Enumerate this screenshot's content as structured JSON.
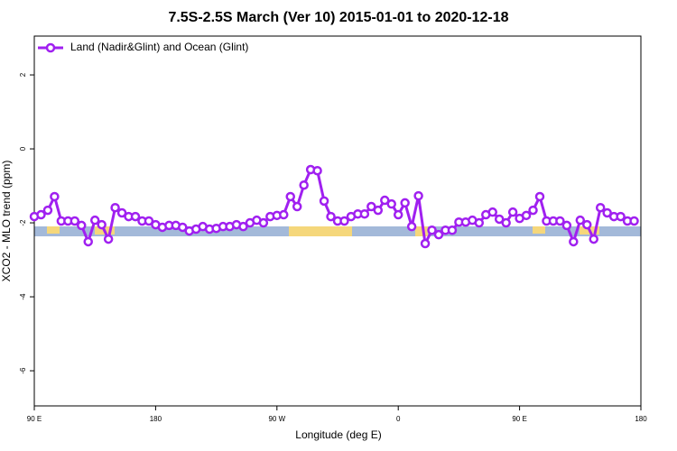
{
  "chart_data": {
    "type": "line",
    "title": "7.5S-2.5S March (Ver 10)   2015-01-01 to 2020-12-18",
    "x_label": "Longitude (deg E)",
    "y_label": "XCO2 - MLO trend (ppm)",
    "x": [
      90,
      95,
      100,
      105,
      110,
      115,
      120,
      125,
      130,
      135,
      140,
      145,
      150,
      155,
      160,
      165,
      170,
      175,
      180,
      185,
      190,
      195,
      200,
      205,
      210,
      215,
      220,
      225,
      230,
      235,
      240,
      245,
      250,
      255,
      260,
      265,
      270,
      275,
      280,
      285,
      290,
      295,
      300,
      305,
      310,
      315,
      320,
      325,
      330,
      335,
      340,
      345,
      350,
      355,
      360,
      365,
      370,
      375,
      380,
      385,
      390,
      395,
      400,
      405,
      410,
      415,
      420,
      425,
      430,
      435,
      440,
      445,
      450,
      455,
      460,
      465,
      470,
      475,
      480,
      485,
      490,
      495,
      500,
      505,
      510,
      515,
      520,
      525,
      530,
      535
    ],
    "series": [
      {
        "name": "Land (Nadir&Glint) and Ocean (Glint)",
        "color": "#a020f0",
        "values": [
          -1.83,
          -1.78,
          -1.66,
          -1.29,
          -1.95,
          -1.95,
          -1.95,
          -2.07,
          -2.51,
          -1.93,
          -2.05,
          -2.44,
          -1.59,
          -1.73,
          -1.83,
          -1.83,
          -1.95,
          -1.95,
          -2.05,
          -2.12,
          -2.07,
          -2.07,
          -2.12,
          -2.22,
          -2.17,
          -2.1,
          -2.17,
          -2.15,
          -2.1,
          -2.1,
          -2.05,
          -2.1,
          -2.0,
          -1.93,
          -2.0,
          -1.83,
          -1.8,
          -1.78,
          -1.29,
          -1.56,
          -0.98,
          -0.56,
          -0.59,
          -1.41,
          -1.83,
          -1.95,
          -1.95,
          -1.83,
          -1.76,
          -1.76,
          -1.56,
          -1.66,
          -1.39,
          -1.49,
          -1.78,
          -1.46,
          -2.1,
          -1.27,
          -2.56,
          -2.2,
          -2.32,
          -2.2,
          -2.2,
          -1.98,
          -1.98,
          -1.93,
          -2.0,
          -1.78,
          -1.71,
          -1.9,
          -2.0,
          -1.71,
          -1.88,
          -1.8,
          -1.66,
          -1.29,
          -1.95,
          -1.95,
          -1.95,
          -2.07,
          -2.51,
          -1.93,
          -2.05,
          -2.44,
          -1.59,
          -1.73,
          -1.83,
          -1.83,
          -1.95,
          -1.95
        ]
      }
    ],
    "xlim": [
      90,
      540
    ],
    "xticks": [
      {
        "value": 90,
        "label": "90 E"
      },
      180,
      {
        "value": 270,
        "label": "90 W"
      },
      {
        "value": 360,
        "label": "0"
      },
      {
        "value": 450,
        "label": "90 E"
      },
      {
        "value": 540,
        "label": "180"
      }
    ],
    "ylim": [
      -6.95,
      3.05
    ],
    "yticks": [
      2,
      0,
      -2,
      -4,
      -6
    ],
    "legend": "top-left"
  }
}
